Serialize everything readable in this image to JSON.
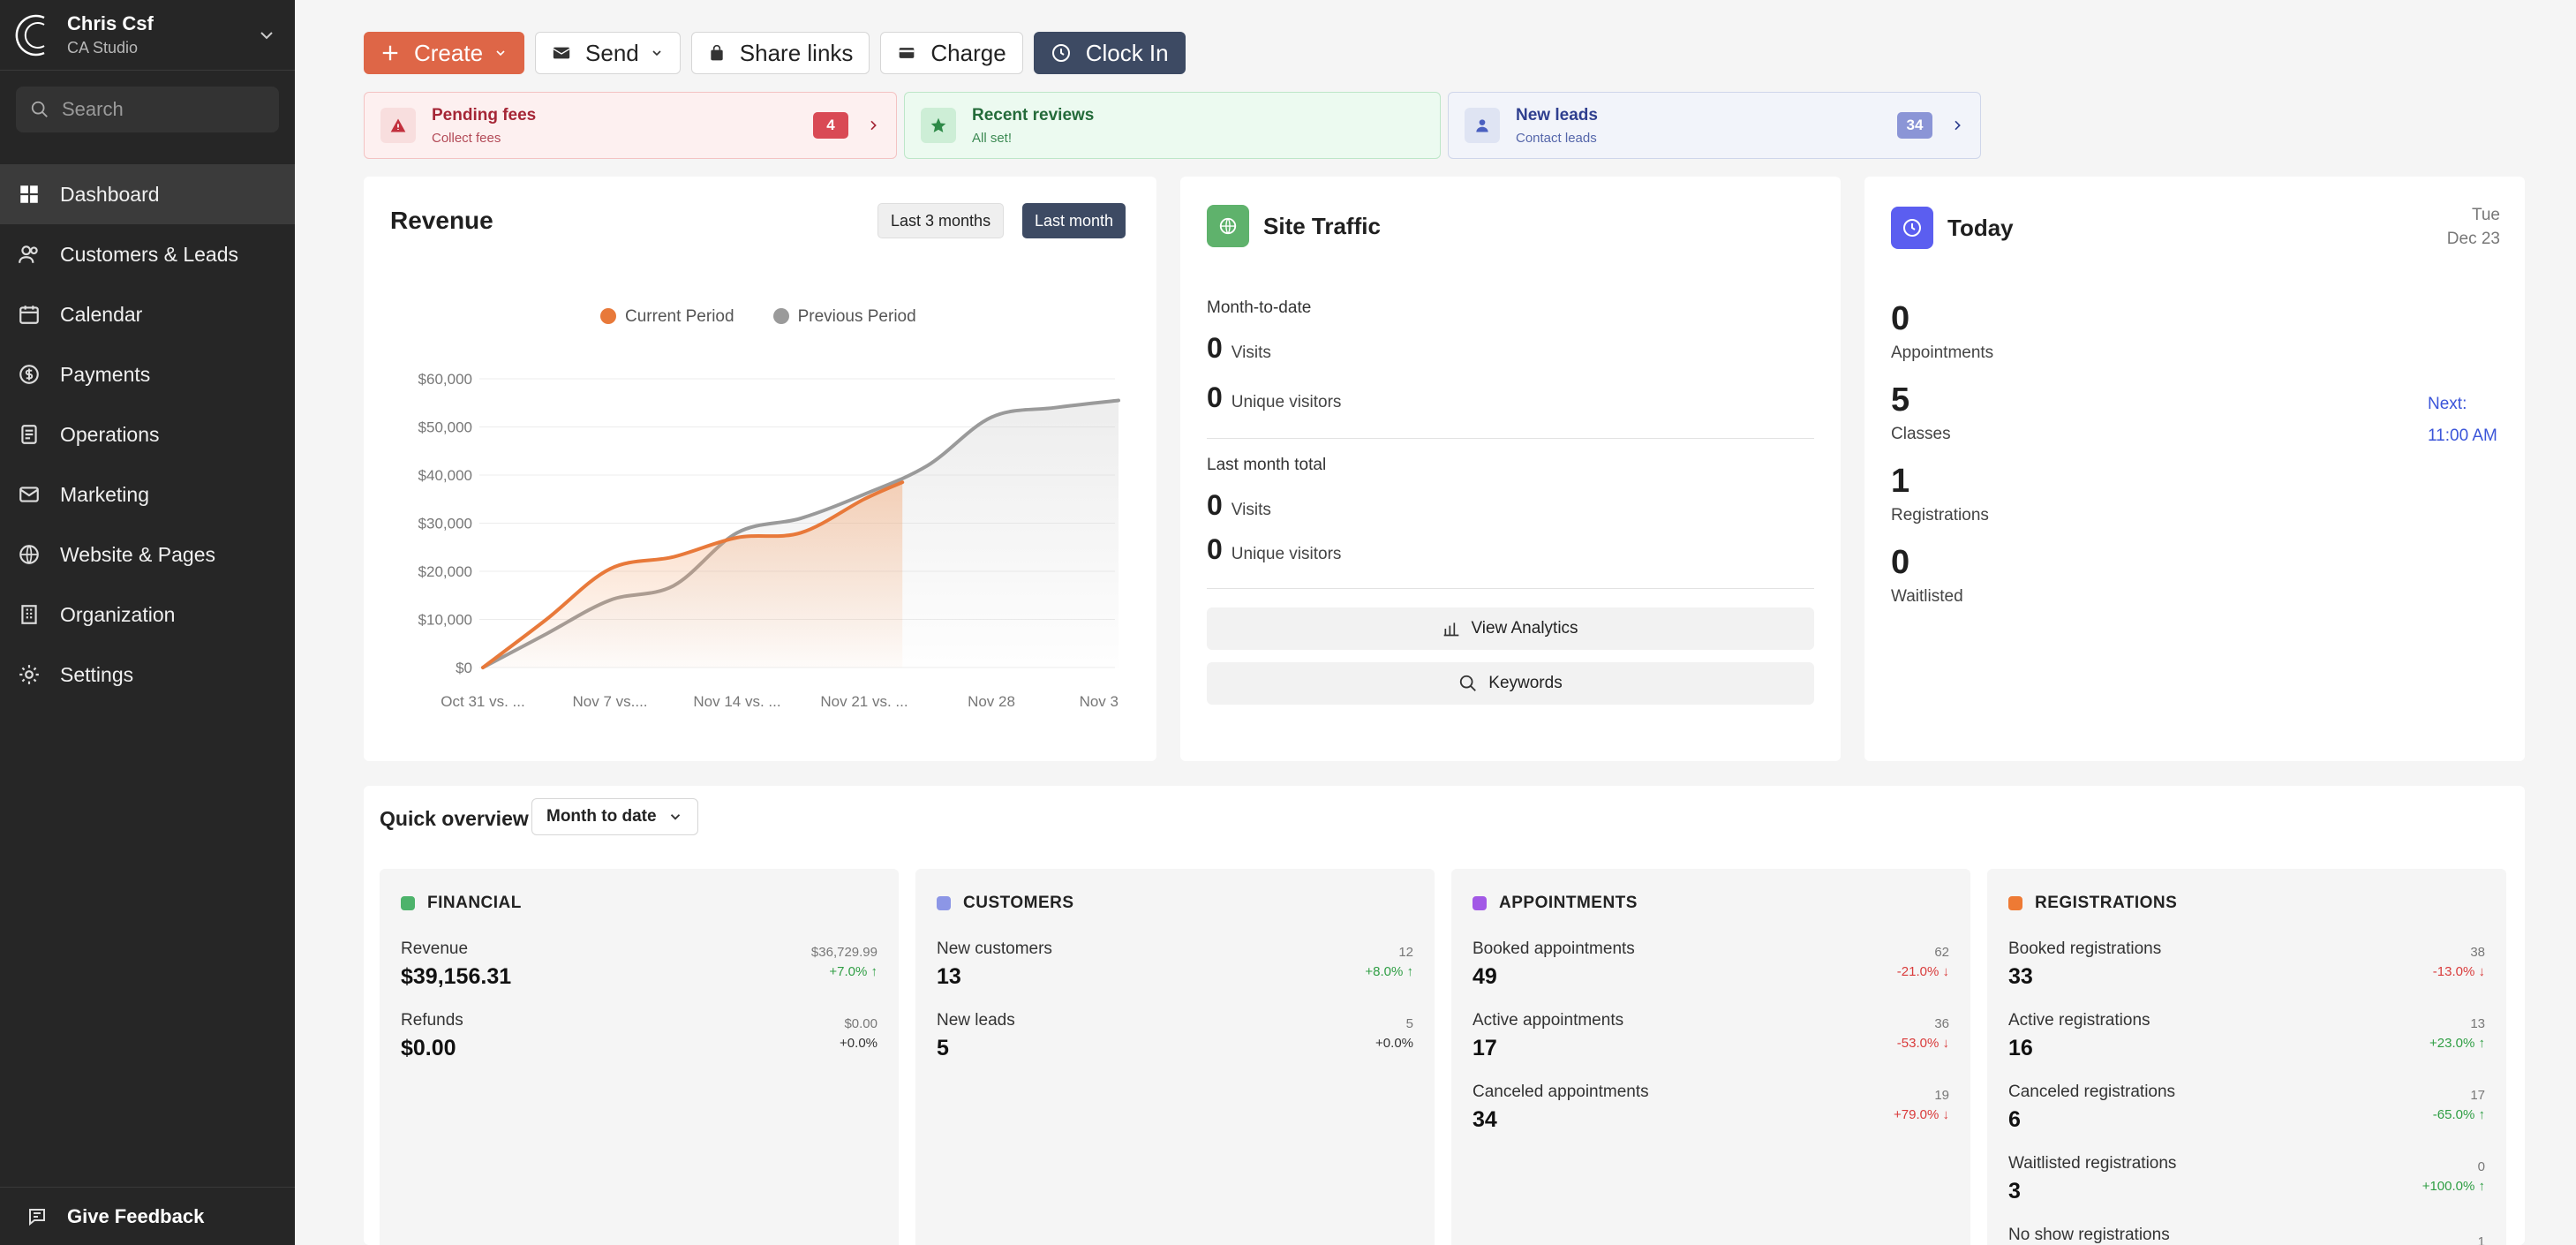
{
  "sidebar": {
    "user_name": "Chris Csf",
    "studio_name": "CA Studio",
    "search_placeholder": "Search",
    "items": [
      {
        "label": "Dashboard",
        "icon": "grid-icon",
        "active": true
      },
      {
        "label": "Customers & Leads",
        "icon": "users-icon"
      },
      {
        "label": "Calendar",
        "icon": "calendar-icon"
      },
      {
        "label": "Payments",
        "icon": "dollar-icon"
      },
      {
        "label": "Operations",
        "icon": "document-icon"
      },
      {
        "label": "Marketing",
        "icon": "mail-icon"
      },
      {
        "label": "Website & Pages",
        "icon": "globe-icon"
      },
      {
        "label": "Organization",
        "icon": "building-icon"
      },
      {
        "label": "Settings",
        "icon": "gear-icon"
      }
    ],
    "feedback_label": "Give Feedback"
  },
  "toolbar": {
    "create": "Create",
    "send": "Send",
    "share_links": "Share links",
    "charge": "Charge",
    "clock_in": "Clock In"
  },
  "alerts": [
    {
      "title": "Pending fees",
      "subtitle": "Collect fees",
      "badge": "4",
      "color": "#c2303d"
    },
    {
      "title": "Recent reviews",
      "subtitle": "All set!",
      "color": "#2e8a48"
    },
    {
      "title": "New leads",
      "subtitle": "Contact leads",
      "badge": "34",
      "color": "#3a4fa8"
    }
  ],
  "revenue": {
    "title": "Revenue",
    "range_options": [
      "Last 3 months",
      "Last month"
    ],
    "selected_range": "Last month"
  },
  "chart_data": {
    "type": "line",
    "title": "Revenue",
    "x": [
      "Oct 31 vs. ...",
      "Nov 7 vs....",
      "Nov 14 vs. ...",
      "Nov 21 vs. ...",
      "Nov 28",
      "Nov 3"
    ],
    "series": [
      {
        "name": "Current Period",
        "color": "#e8793a",
        "x": [
          0,
          0.5,
          1,
          1.5,
          2,
          2.5,
          3,
          3.3
        ],
        "values": [
          0,
          10000,
          20500,
          23000,
          27000,
          28000,
          35000,
          38500
        ]
      },
      {
        "name": "Previous Period",
        "color": "#9a9a9a",
        "x": [
          0,
          0.5,
          1,
          1.5,
          2,
          2.5,
          3,
          3.5,
          4,
          4.5,
          5
        ],
        "values": [
          0,
          7000,
          14000,
          17000,
          28000,
          31000,
          36000,
          42000,
          52000,
          54000,
          55500
        ]
      }
    ],
    "y_ticks": [
      "$0",
      "$10,000",
      "$20,000",
      "$30,000",
      "$40,000",
      "$50,000",
      "$60,000"
    ],
    "ylim": [
      0,
      60000
    ],
    "grid": true,
    "legend": "top"
  },
  "traffic": {
    "title": "Site Traffic",
    "mtd_label": "Month-to-date",
    "mtd_visits": "0",
    "visits_label": "Visits",
    "mtd_unique": "0",
    "unique_label": "Unique visitors",
    "last_label": "Last month total",
    "last_visits": "0",
    "last_unique": "0",
    "analytics_button": "View Analytics",
    "keywords_button": "Keywords"
  },
  "today": {
    "title": "Today",
    "weekday": "Tue",
    "date": "Dec 23",
    "stats": [
      {
        "value": "0",
        "label": "Appointments"
      },
      {
        "value": "5",
        "label": "Classes"
      },
      {
        "value": "1",
        "label": "Registrations"
      },
      {
        "value": "0",
        "label": "Waitlisted"
      }
    ],
    "next_label": "Next:",
    "next_time": "11:00 AM"
  },
  "overview": {
    "title": "Quick overview",
    "period": "Month to date",
    "panels": [
      {
        "title": "FINANCIAL",
        "color": "#4db36b",
        "metrics": [
          {
            "label": "Revenue",
            "value": "$39,156.31",
            "prev": "$36,729.99",
            "change": "+7.0% ↑",
            "dir": "up"
          },
          {
            "label": "Refunds",
            "value": "$0.00",
            "prev": "$0.00",
            "change": "+0.0%",
            "dir": "flat"
          }
        ]
      },
      {
        "title": "CUSTOMERS",
        "color": "#8c96e6",
        "metrics": [
          {
            "label": "New customers",
            "value": "13",
            "prev": "12",
            "change": "+8.0% ↑",
            "dir": "up"
          },
          {
            "label": "New leads",
            "value": "5",
            "prev": "5",
            "change": "+0.0%",
            "dir": "flat"
          }
        ]
      },
      {
        "title": "APPOINTMENTS",
        "color": "#a259e6",
        "metrics": [
          {
            "label": "Booked appointments",
            "value": "49",
            "prev": "62",
            "change": "-21.0% ↓",
            "dir": "down"
          },
          {
            "label": "Active appointments",
            "value": "17",
            "prev": "36",
            "change": "-53.0% ↓",
            "dir": "down"
          },
          {
            "label": "Canceled appointments",
            "value": "34",
            "prev": "19",
            "change": "+79.0% ↓",
            "dir": "down"
          }
        ]
      },
      {
        "title": "REGISTRATIONS",
        "color": "#ee7a34",
        "metrics": [
          {
            "label": "Booked registrations",
            "value": "33",
            "prev": "38",
            "change": "-13.0% ↓",
            "dir": "down"
          },
          {
            "label": "Active registrations",
            "value": "16",
            "prev": "13",
            "change": "+23.0% ↑",
            "dir": "up"
          },
          {
            "label": "Canceled registrations",
            "value": "6",
            "prev": "17",
            "change": "-65.0% ↑",
            "dir": "up"
          },
          {
            "label": "Waitlisted registrations",
            "value": "3",
            "prev": "0",
            "change": "+100.0% ↑",
            "dir": "up"
          },
          {
            "label": "No show registrations",
            "value": "",
            "prev": "1",
            "change": "",
            "dir": "flat"
          }
        ]
      }
    ]
  }
}
